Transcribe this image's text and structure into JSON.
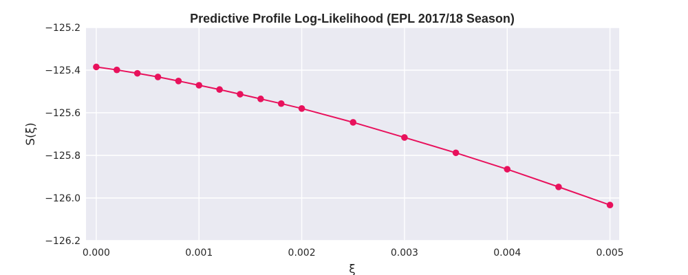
{
  "chart_data": {
    "type": "line",
    "title": "Predictive Profile Log-Likelihood (EPL 2017/18 Season)",
    "xlabel": "ξ",
    "ylabel": "S(ξ)",
    "xlim": [
      -0.0001,
      0.00509
    ],
    "ylim": [
      -126.2,
      -125.2
    ],
    "x_ticks": [
      0.0,
      0.001,
      0.002,
      0.003,
      0.004,
      0.005
    ],
    "x_tick_labels": [
      "0.000",
      "0.001",
      "0.002",
      "0.003",
      "0.004",
      "0.005"
    ],
    "y_ticks": [
      -125.2,
      -125.4,
      -125.6,
      -125.8,
      -126.0,
      -126.2
    ],
    "y_tick_labels": [
      "−125.2",
      "−125.4",
      "−125.6",
      "−125.8",
      "−126.0",
      "−126.2"
    ],
    "grid": true,
    "series": [
      {
        "x": [
          0.0,
          0.0002,
          0.0004,
          0.0006,
          0.0008,
          0.001,
          0.0012,
          0.0014,
          0.0016,
          0.0018,
          0.002,
          0.0025,
          0.003,
          0.0035,
          0.004,
          0.0045,
          0.005
        ],
        "y": [
          -125.385,
          -125.399,
          -125.415,
          -125.432,
          -125.451,
          -125.471,
          -125.491,
          -125.513,
          -125.535,
          -125.557,
          -125.58,
          -125.645,
          -125.716,
          -125.788,
          -125.865,
          -125.948,
          -126.033
        ],
        "color": "#e8115c",
        "marker": "circle"
      }
    ]
  }
}
